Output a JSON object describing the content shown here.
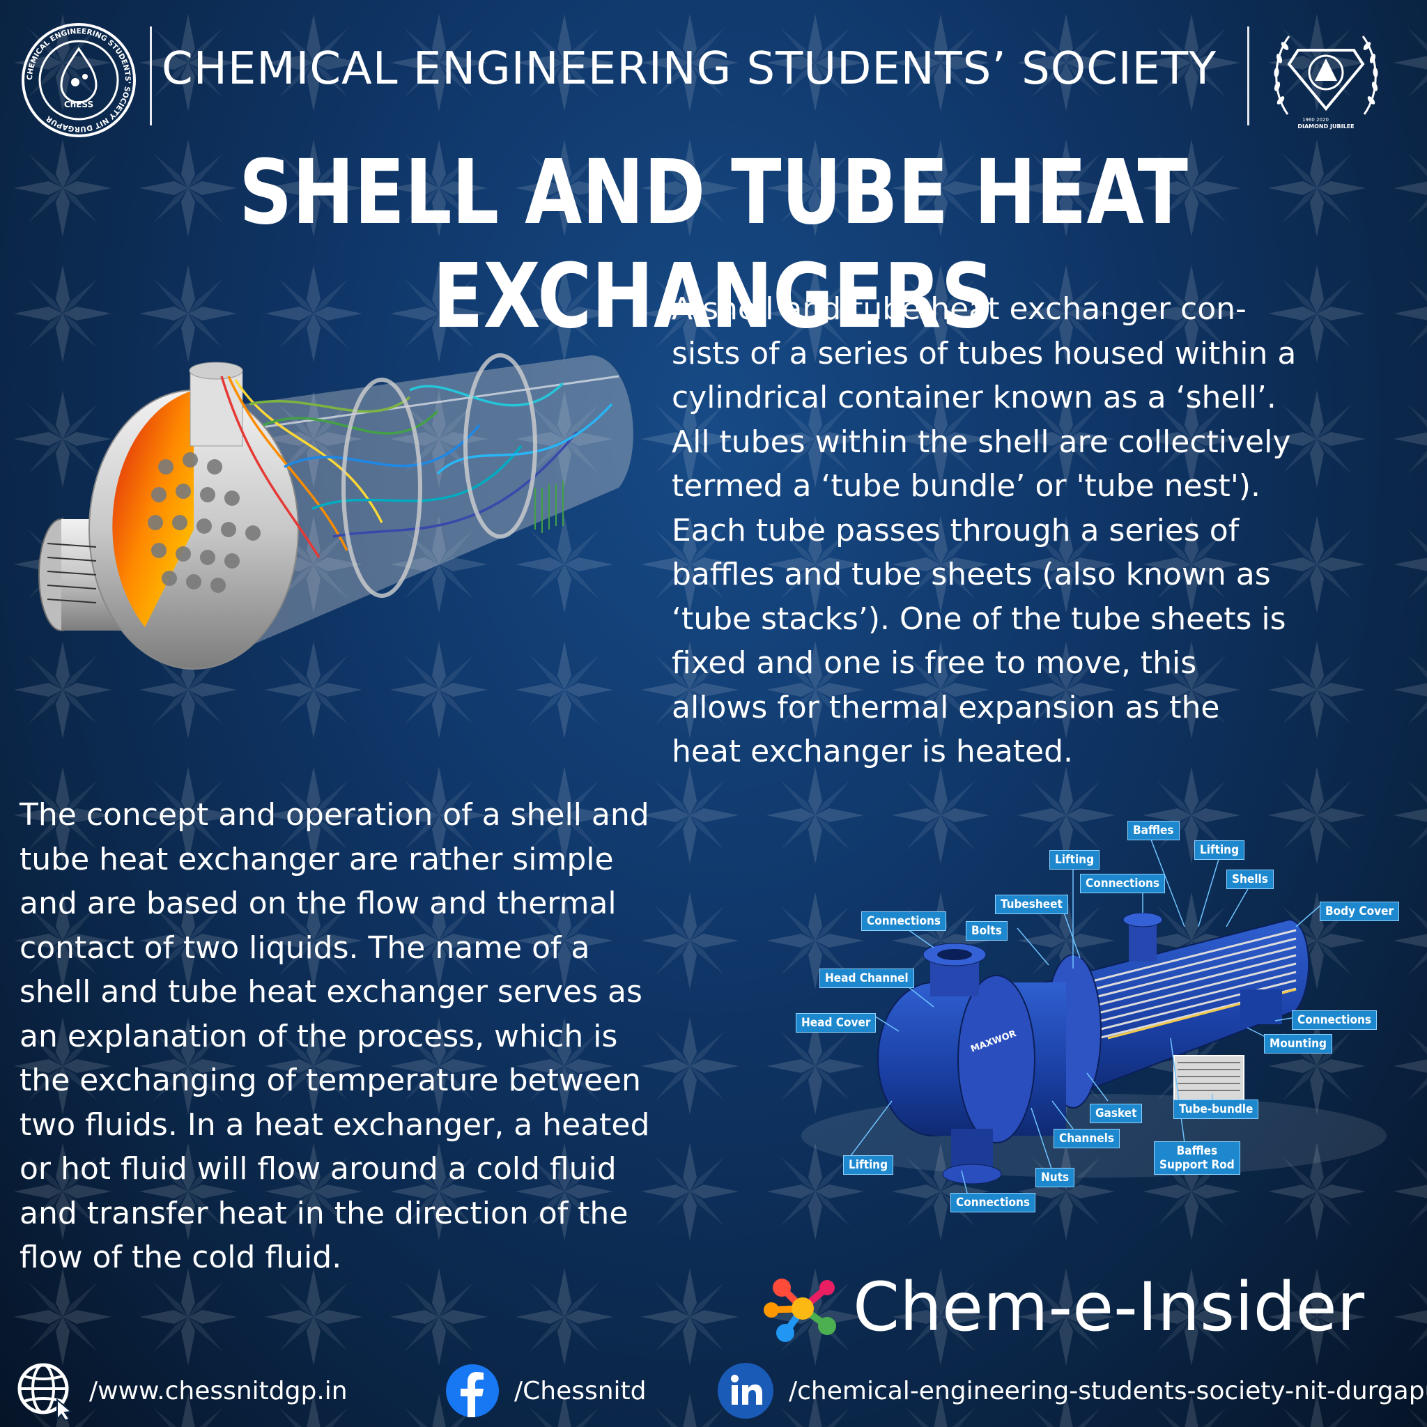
{
  "header": {
    "society_name": "CHEMICAL ENGINEERING STUDENTS’ SOCIETY",
    "left_logo": {
      "ring_text": "CHEMICAL ENGINEERING STUDENTS' SOCIETY NIT DURGAPUR",
      "abbr": "ChESS"
    },
    "right_logo": {
      "caption": "DIAMOND JUBILEE",
      "years": "1960 2020"
    }
  },
  "title": "SHELL AND TUBE HEAT EXCHANGERS",
  "paragraph1": [
    "A shell and tube heat exchanger con-",
    "sists of a series of tubes housed within a",
    "cylindrical container known as a ‘shell’.",
    "All tubes within the shell are collectively",
    "termed a ‘tube bundle’ or 'tube nest').",
    "Each tube passes through a series of",
    "baffles and tube sheets (also known as",
    "‘tube stacks’). One of the tube sheets is",
    "fixed and one is free to move, this",
    "allows for thermal expansion as the",
    "heat exchanger is heated."
  ],
  "paragraph2": [
    "The concept and operation of a shell and",
    "tube heat exchanger are rather simple",
    "and are based on the flow and thermal",
    "contact of two liquids. The name of a",
    "shell and tube heat exchanger serves as",
    "an explanation of the process, which is",
    "the exchanging of temperature between",
    "two fluids. In a heat exchanger, a heated",
    "or hot fluid will flow around a cold fluid",
    "and transfer heat in the direction of the",
    "flow of the cold fluid."
  ],
  "diagram": {
    "brand_on_body": "MAXWOR",
    "labels": {
      "baffles": "Baffles",
      "lifting_top": "Lifting",
      "lifting_right": "Lifting",
      "connections_top": "Connections",
      "shells": "Shells",
      "body_cover": "Body Cover",
      "tubesheet": "Tubesheet",
      "connections_left": "Connections",
      "bolts": "Bolts",
      "head_channel": "Head Channel",
      "head_cover": "Head Cover",
      "connections_right": "Connections",
      "mounting": "Mounting",
      "tube_bundle": "Tube-bundle",
      "gasket": "Gasket",
      "channels": "Channels",
      "baffles_support_rod": "Baffles\nSupport Rod",
      "lifting_bottom": "Lifting",
      "nuts": "Nuts",
      "connections_bottom": "Connections"
    }
  },
  "brand": {
    "name": "Chem-e-Insider",
    "logo_colors": [
      "#ff4b3a",
      "#fdb913",
      "#4caf50",
      "#2196f3",
      "#e91e63",
      "#ff9800"
    ]
  },
  "footer": {
    "website": "/www.chessnitdgp.in",
    "facebook": "/Chessnitd",
    "linkedin": "/chemical-engineering-students-society-nit-durgapur",
    "icons": [
      "globe-icon",
      "facebook-icon",
      "linkedin-icon"
    ],
    "facebook_color": "#1877f2",
    "linkedin_color": "#0a66c2"
  }
}
